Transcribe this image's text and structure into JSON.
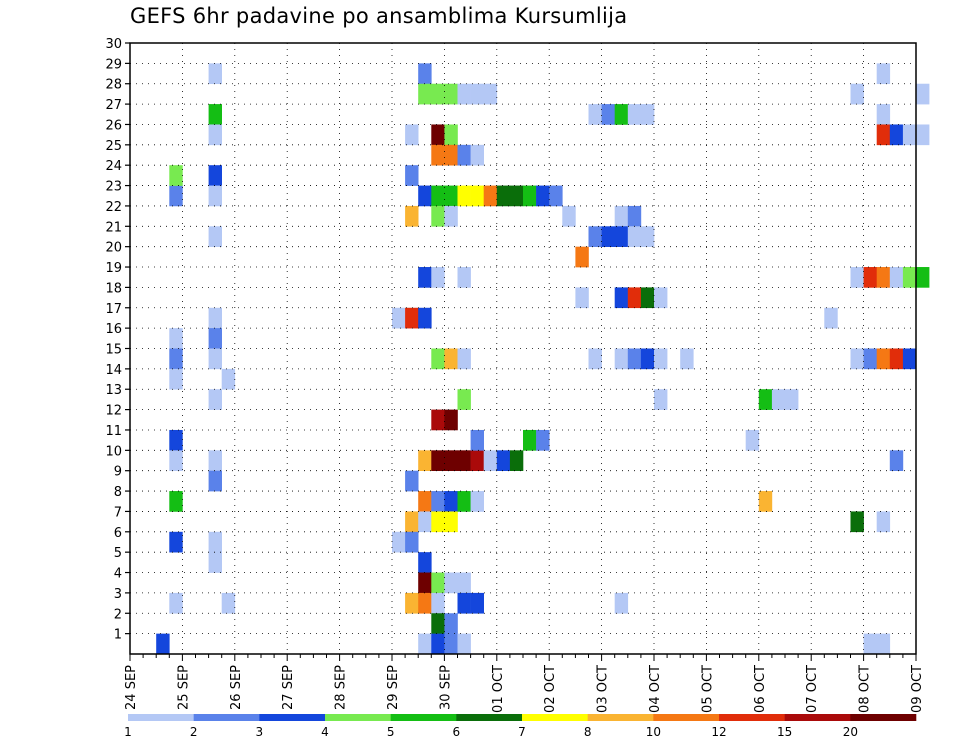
{
  "chart_data": {
    "type": "heatmap",
    "title": "GEFS 6hr padavine po ansamblima Kursumlija",
    "x_tick_labels": [
      "24 SEP",
      "25 SEP",
      "26 SEP",
      "27 SEP",
      "28 SEP",
      "29 SEP",
      "30 SEP",
      "01 OCT",
      "02 OCT",
      "03 OCT",
      "04 OCT",
      "05 OCT",
      "06 OCT",
      "07 OCT",
      "08 OCT",
      "09 OCT"
    ],
    "y_tick_labels": [
      "1",
      "2",
      "3",
      "4",
      "5",
      "6",
      "7",
      "8",
      "9",
      "10",
      "11",
      "12",
      "13",
      "14",
      "15",
      "16",
      "17",
      "18",
      "19",
      "20",
      "21",
      "22",
      "23",
      "24",
      "25",
      "26",
      "27",
      "28",
      "29",
      "30"
    ],
    "x_range_steps": [
      0,
      60
    ],
    "y_range": [
      0,
      30
    ],
    "grid": true,
    "legend": {
      "placement": "bottom",
      "labels": [
        "1",
        "2",
        "3",
        "4",
        "5",
        "6",
        "7",
        "8",
        "10",
        "12",
        "15",
        "20"
      ],
      "colors": [
        "#b4c8f5",
        "#5a82ea",
        "#1446dc",
        "#78ea50",
        "#14be14",
        "#0a6e0a",
        "#ffff00",
        "#fab432",
        "#f57814",
        "#e12d0a",
        "#aa0a0a",
        "#6e0000"
      ]
    },
    "palette": {
      "1": "#b4c8f5",
      "2": "#5a82ea",
      "3": "#1446dc",
      "4": "#78ea50",
      "5": "#14be14",
      "6": "#0a6e0a",
      "7": "#ffff00",
      "8": "#fab432",
      "9": "#f57814",
      "10": "#e12d0a",
      "11": "#aa0a0a",
      "12": "#6e0000"
    },
    "cells": [
      [
        2,
        0,
        3
      ],
      [
        3,
        15,
        1
      ],
      [
        3,
        22,
        2
      ],
      [
        3,
        23,
        4
      ],
      [
        3,
        2,
        1
      ],
      [
        3,
        14,
        2
      ],
      [
        3,
        13,
        1
      ],
      [
        3,
        10,
        3
      ],
      [
        3,
        9,
        1
      ],
      [
        3,
        7,
        5
      ],
      [
        3,
        5,
        3
      ],
      [
        6,
        26,
        5
      ],
      [
        6,
        28,
        1
      ],
      [
        6,
        25,
        1
      ],
      [
        6,
        23,
        3
      ],
      [
        6,
        22,
        1
      ],
      [
        6,
        20,
        1
      ],
      [
        6,
        16,
        1
      ],
      [
        6,
        15,
        2
      ],
      [
        6,
        14,
        1
      ],
      [
        6,
        12,
        1
      ],
      [
        6,
        9,
        1
      ],
      [
        6,
        8,
        2
      ],
      [
        6,
        5,
        1
      ],
      [
        6,
        4,
        1
      ],
      [
        7,
        13,
        1
      ],
      [
        7,
        2,
        1
      ],
      [
        20,
        16,
        1
      ],
      [
        20,
        5,
        1
      ],
      [
        21,
        25,
        1
      ],
      [
        21,
        23,
        2
      ],
      [
        21,
        21,
        8
      ],
      [
        21,
        16,
        10
      ],
      [
        21,
        8,
        2
      ],
      [
        21,
        6,
        8
      ],
      [
        21,
        5,
        2
      ],
      [
        21,
        2,
        8
      ],
      [
        22,
        28,
        2
      ],
      [
        22,
        27,
        4
      ],
      [
        22,
        22,
        3
      ],
      [
        22,
        18,
        3
      ],
      [
        22,
        16,
        3
      ],
      [
        22,
        9,
        8
      ],
      [
        22,
        7,
        9
      ],
      [
        22,
        6,
        1
      ],
      [
        22,
        4,
        3
      ],
      [
        22,
        3,
        12
      ],
      [
        22,
        2,
        9
      ],
      [
        22,
        0,
        1
      ],
      [
        23,
        27,
        4
      ],
      [
        23,
        25,
        12
      ],
      [
        23,
        24,
        9
      ],
      [
        23,
        22,
        5
      ],
      [
        23,
        21,
        4
      ],
      [
        23,
        18,
        1
      ],
      [
        23,
        14,
        4
      ],
      [
        23,
        11,
        11
      ],
      [
        23,
        9,
        12
      ],
      [
        23,
        7,
        2
      ],
      [
        23,
        6,
        7
      ],
      [
        23,
        3,
        4
      ],
      [
        23,
        2,
        1
      ],
      [
        23,
        1,
        6
      ],
      [
        23,
        0,
        3
      ],
      [
        24,
        27,
        4
      ],
      [
        24,
        25,
        4
      ],
      [
        24,
        24,
        9
      ],
      [
        24,
        22,
        5
      ],
      [
        24,
        21,
        1
      ],
      [
        24,
        14,
        8
      ],
      [
        24,
        11,
        12
      ],
      [
        24,
        9,
        12
      ],
      [
        24,
        7,
        3
      ],
      [
        24,
        6,
        7
      ],
      [
        24,
        3,
        1
      ],
      [
        24,
        1,
        2
      ],
      [
        24,
        0,
        2
      ],
      [
        25,
        27,
        1
      ],
      [
        25,
        24,
        2
      ],
      [
        25,
        22,
        7
      ],
      [
        25,
        18,
        1
      ],
      [
        25,
        14,
        1
      ],
      [
        25,
        12,
        4
      ],
      [
        25,
        9,
        12
      ],
      [
        25,
        7,
        5
      ],
      [
        25,
        3,
        1
      ],
      [
        25,
        2,
        3
      ],
      [
        25,
        0,
        1
      ],
      [
        26,
        27,
        1
      ],
      [
        26,
        24,
        1
      ],
      [
        26,
        22,
        7
      ],
      [
        26,
        9,
        11
      ],
      [
        26,
        10,
        2
      ],
      [
        26,
        7,
        1
      ],
      [
        26,
        2,
        3
      ],
      [
        27,
        27,
        1
      ],
      [
        27,
        22,
        9
      ],
      [
        27,
        9,
        1
      ],
      [
        28,
        22,
        6
      ],
      [
        28,
        9,
        3
      ],
      [
        29,
        22,
        6
      ],
      [
        29,
        9,
        6
      ],
      [
        30,
        22,
        5
      ],
      [
        30,
        10,
        5
      ],
      [
        31,
        22,
        3
      ],
      [
        31,
        10,
        2
      ],
      [
        32,
        22,
        2
      ],
      [
        33,
        21,
        1
      ],
      [
        34,
        19,
        9
      ],
      [
        34,
        17,
        1
      ],
      [
        35,
        26,
        1
      ],
      [
        35,
        20,
        2
      ],
      [
        35,
        14,
        1
      ],
      [
        36,
        26,
        2
      ],
      [
        36,
        20,
        3
      ],
      [
        37,
        26,
        5
      ],
      [
        37,
        21,
        1
      ],
      [
        37,
        20,
        3
      ],
      [
        37,
        17,
        3
      ],
      [
        37,
        14,
        1
      ],
      [
        37,
        2,
        1
      ],
      [
        38,
        26,
        1
      ],
      [
        38,
        21,
        2
      ],
      [
        38,
        20,
        1
      ],
      [
        38,
        17,
        10
      ],
      [
        38,
        14,
        2
      ],
      [
        39,
        26,
        1
      ],
      [
        39,
        20,
        1
      ],
      [
        39,
        17,
        6
      ],
      [
        39,
        14,
        3
      ],
      [
        40,
        17,
        1
      ],
      [
        40,
        14,
        1
      ],
      [
        40,
        12,
        1
      ],
      [
        42,
        14,
        1
      ],
      [
        47,
        10,
        1
      ],
      [
        48,
        12,
        5
      ],
      [
        48,
        7,
        8
      ],
      [
        49,
        12,
        1
      ],
      [
        50,
        12,
        1
      ],
      [
        53,
        16,
        1
      ],
      [
        55,
        27,
        1
      ],
      [
        55,
        18,
        1
      ],
      [
        55,
        14,
        1
      ],
      [
        55,
        6,
        6
      ],
      [
        56,
        18,
        10
      ],
      [
        56,
        14,
        2
      ],
      [
        56,
        0,
        1
      ],
      [
        57,
        28,
        1
      ],
      [
        57,
        26,
        1
      ],
      [
        57,
        25,
        10
      ],
      [
        57,
        18,
        9
      ],
      [
        57,
        14,
        9
      ],
      [
        57,
        6,
        1
      ],
      [
        57,
        0,
        1
      ],
      [
        58,
        25,
        3
      ],
      [
        58,
        18,
        1
      ],
      [
        58,
        14,
        10
      ],
      [
        58,
        9,
        2
      ],
      [
        59,
        25,
        1
      ],
      [
        59,
        18,
        4
      ],
      [
        59,
        14,
        3
      ],
      [
        60,
        27,
        1
      ],
      [
        60,
        25,
        1
      ],
      [
        60,
        18,
        5
      ]
    ]
  }
}
